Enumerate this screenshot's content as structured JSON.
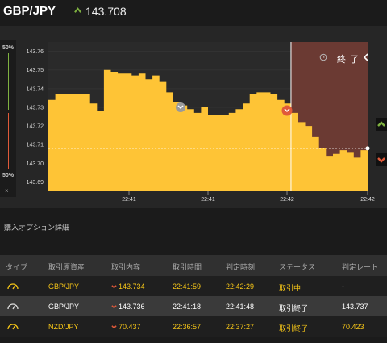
{
  "header": {
    "pair": "GBP/JPY",
    "price": "143.708",
    "price_up_icon": "up-arrow-icon"
  },
  "sidebar": {
    "top_pct": "50%",
    "bottom_pct": "50%",
    "close_symbol": "×"
  },
  "chart": {
    "expired_label": "終 了",
    "colors": {
      "area": "#fec436",
      "expired": "#6b3a33",
      "line": "#ffffff",
      "up": "#7fb241",
      "down": "#e05a3a"
    }
  },
  "chart_data": {
    "type": "area",
    "y_ticks": [
      "143.76",
      "143.75",
      "143.74",
      "143.73",
      "143.72",
      "143.71",
      "143.70",
      "143.69"
    ],
    "x_ticks": [
      "22:41",
      "22:41",
      "22:42",
      "22:42"
    ],
    "ylim": [
      143.685,
      143.765
    ],
    "current_value": 143.708,
    "series": [
      {
        "values": [
          143.734,
          143.737,
          143.737,
          143.737,
          143.737,
          143.737,
          143.732,
          143.728,
          143.75,
          143.749,
          143.748,
          143.748,
          143.747,
          143.748,
          143.745,
          143.747,
          143.744,
          143.738,
          143.733,
          143.731,
          143.729,
          143.727,
          143.73,
          143.726,
          143.726,
          143.726,
          143.727,
          143.729,
          143.732,
          143.737,
          143.738,
          143.738,
          143.737,
          143.734,
          143.732,
          143.727,
          143.722,
          143.72,
          143.714,
          143.708,
          143.704,
          143.705,
          143.707,
          143.706,
          143.703,
          143.707,
          143.708
        ]
      }
    ]
  },
  "section_title": "購入オプション詳細",
  "table": {
    "headers": [
      "タイプ",
      "取引原資産",
      "取引内容",
      "取引時間",
      "判定時刻",
      "ステータス",
      "判定レート"
    ],
    "rows": [
      {
        "type_icon": "gauge-icon",
        "asset": "GBP/JPY",
        "content": "143.734",
        "trade_time": "22:41:59",
        "judge_time": "22:42:29",
        "status": "取引中",
        "rate": "-"
      },
      {
        "type_icon": "gauge-icon",
        "asset": "GBP/JPY",
        "content": "143.736",
        "trade_time": "22:41:18",
        "judge_time": "22:41:48",
        "status": "取引終了",
        "rate": "143.737"
      },
      {
        "type_icon": "gauge-icon",
        "asset": "NZD/JPY",
        "content": "70.437",
        "trade_time": "22:36:57",
        "judge_time": "22:37:27",
        "status": "取引終了",
        "rate": "70.423"
      }
    ]
  }
}
